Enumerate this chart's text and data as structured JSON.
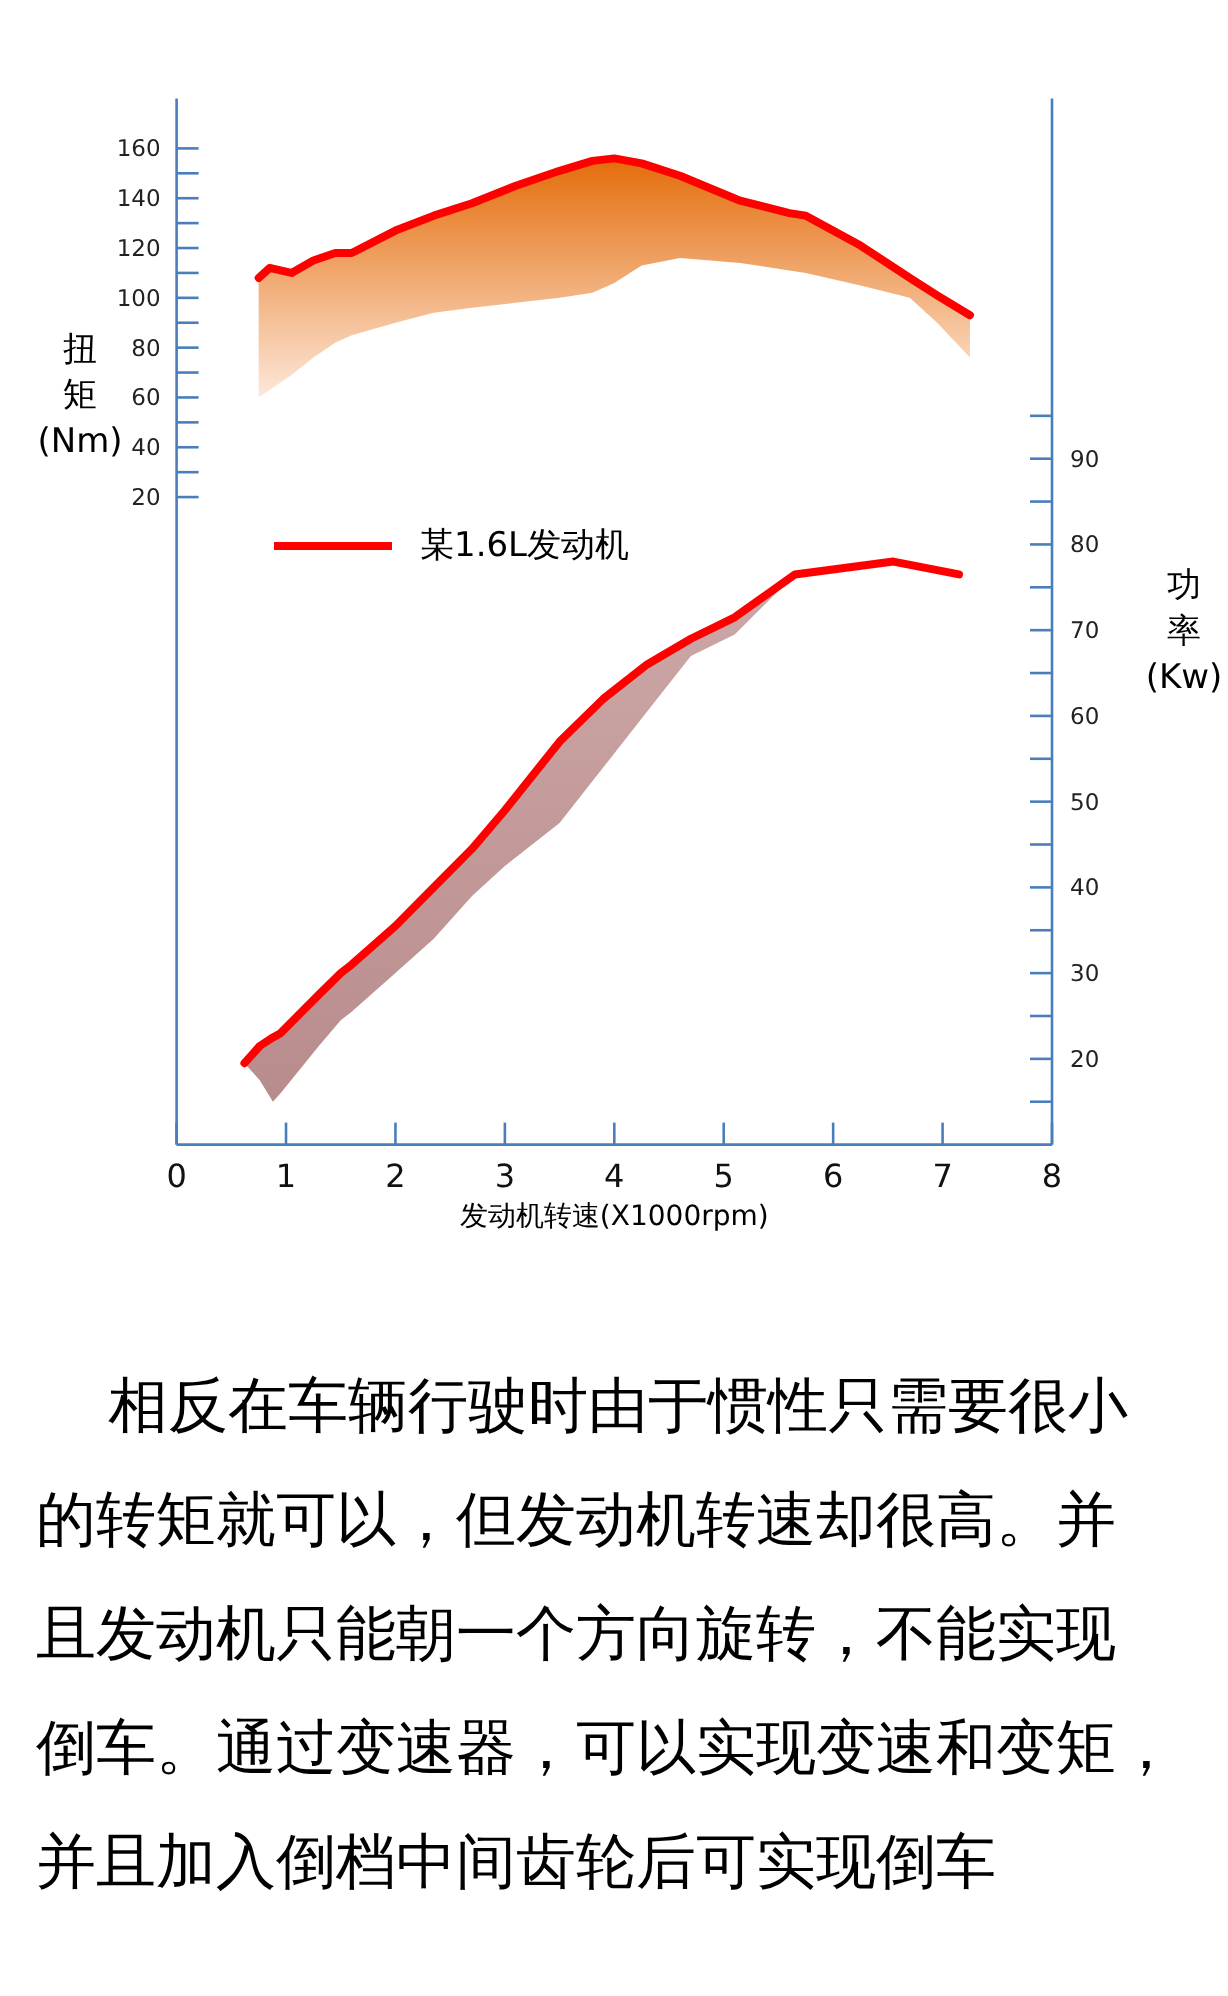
{
  "chart_data": {
    "type": "line",
    "xlabel": "发动机转速(X1000rpm)",
    "ylabel": "扭矩(Nm)",
    "y2label": "功率(Kw)",
    "xlim": [
      0,
      8
    ],
    "xticks": [
      0,
      1,
      2,
      3,
      4,
      5,
      6,
      7,
      8
    ],
    "ylim": [
      -240,
      180
    ],
    "yticks": [
      20,
      {
        "value": 30,
        "label": null
      },
      40,
      {
        "value": 50,
        "label": null
      },
      60,
      {
        "value": 70,
        "label": null
      },
      80,
      {
        "value": 90,
        "label": null
      },
      100,
      {
        "value": 110,
        "label": null
      },
      120,
      {
        "value": 130,
        "label": null
      },
      140,
      {
        "value": 150,
        "label": null
      },
      160
    ],
    "y2lim": [
      10,
      132
    ],
    "y2ticks": [
      {
        "value": 15,
        "label": null
      },
      20,
      {
        "value": 25,
        "label": null
      },
      30,
      {
        "value": 35,
        "label": null
      },
      40,
      {
        "value": 45,
        "label": null
      },
      50,
      {
        "value": 55,
        "label": null
      },
      60,
      {
        "value": 65,
        "label": null
      },
      70,
      {
        "value": 75,
        "label": null
      },
      80,
      {
        "value": 85,
        "label": null
      },
      90,
      {
        "value": 95,
        "label": null
      }
    ],
    "legend": "left",
    "annotations": [
      "相反在车辆行驶时由于惯性只需要很小的转矩就可以，但发动机转速却很高。并且发动机只能朝一个方向旋转，不能实现倒车。通过变速器，可以实现变速和变矩，并且加入倒档中间齿轮后可实现倒车"
    ],
    "series": [
      {
        "name": "某1.6L发动机",
        "color": "#ff0000",
        "x": [
          0.75,
          0.85,
          1.05,
          1.25,
          1.45,
          1.6,
          2.0,
          2.35,
          2.7,
          3.1,
          3.5,
          3.8,
          4.0,
          4.25,
          4.6,
          5.15,
          5.6,
          5.75,
          6.25,
          6.7,
          6.95,
          7.25
        ],
        "values": [
          108,
          112,
          110,
          115,
          118,
          118,
          127,
          133,
          138,
          145,
          151,
          155,
          156,
          154,
          149,
          139,
          134,
          133,
          121,
          108,
          101,
          93
        ],
        "upper": [
          108,
          112,
          110,
          115,
          118,
          118,
          127,
          133,
          138,
          145,
          151,
          155,
          156,
          154,
          149,
          139,
          134,
          133,
          121,
          108,
          101,
          93
        ],
        "lower": [
          60,
          63,
          69,
          76,
          82,
          85,
          90,
          94,
          96,
          98,
          100,
          102,
          106,
          113,
          116,
          114,
          111,
          110,
          105,
          100,
          90,
          76
        ]
      },
      {
        "axis": "y2",
        "color": "#ff0000",
        "x": [
          0.62,
          0.76,
          0.88,
          0.95,
          1.3,
          1.5,
          1.6,
          2.0,
          2.35,
          2.7,
          3.0,
          3.5,
          3.9,
          4.3,
          4.7,
          5.1,
          5.65,
          6.55,
          7.15
        ],
        "values": [
          19.5,
          21.5,
          22.5,
          23,
          27.5,
          30,
          31,
          35.5,
          40,
          44.5,
          49,
          57,
          62,
          66,
          69,
          71.5,
          76.5,
          78,
          76.5
        ],
        "upper": [
          19.5,
          21.5,
          22.5,
          23,
          27.5,
          30,
          31,
          35.5,
          40,
          44.5,
          49,
          57,
          62,
          66,
          69,
          71.5,
          76.5,
          78,
          76.5
        ],
        "lower": [
          19.5,
          17.5,
          15,
          16,
          21.5,
          24.5,
          25.5,
          30,
          34,
          39,
          42.5,
          47.5,
          54,
          60.5,
          67,
          69.5,
          76.5,
          78,
          76.5
        ]
      }
    ]
  }
}
